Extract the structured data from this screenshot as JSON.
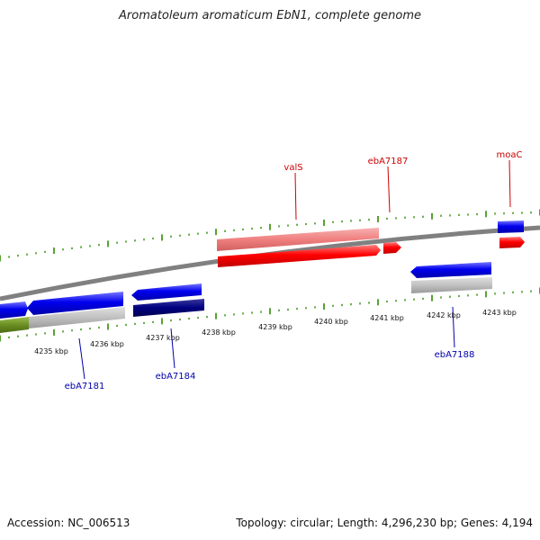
{
  "title": "Aromatoleum aromaticum EbN1, complete genome",
  "footer": {
    "accession": "Accession: NC_006513",
    "summary": "Topology: circular; Length: 4,296,230 bp; Genes: 4,194"
  },
  "scale": {
    "unit": "kbp",
    "ticks": [
      "4235 kbp",
      "4236 kbp",
      "4237 kbp",
      "4238 kbp",
      "4239 kbp",
      "4240 kbp",
      "4241 kbp",
      "4242 kbp",
      "4243 kbp"
    ]
  },
  "gene_labels": {
    "forward": [
      "valS",
      "ebA7187",
      "moaC"
    ],
    "reverse": [
      "ebA7181",
      "ebA7184",
      "ebA7188"
    ]
  },
  "colors": {
    "forward_label": "#cc0000",
    "reverse_label": "#0000aa",
    "forward_gene": "#ff0000",
    "forward_gene_light": "#f08080",
    "reverse_gene": "#0000ee",
    "reverse_gene_dark": "#000080",
    "grey_feature": "#c0c0c0",
    "olive_feature": "#6b8e23",
    "backbone": "#808080",
    "tick": "#2e8b00"
  }
}
